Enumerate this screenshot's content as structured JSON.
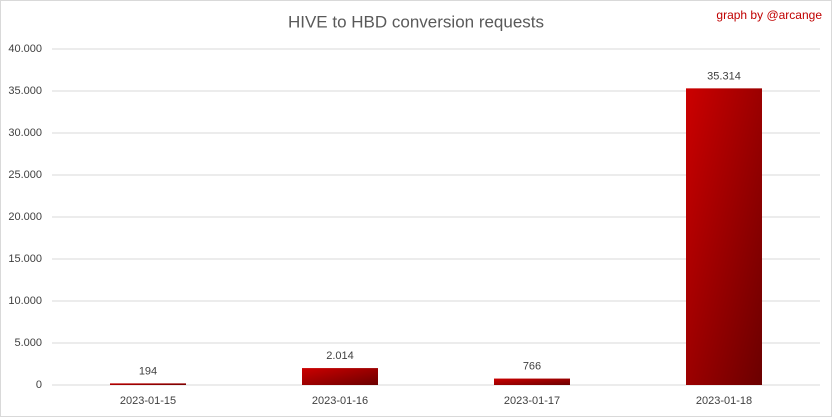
{
  "chart_data": {
    "type": "bar",
    "title": "HIVE to HBD conversion requests",
    "annotation": "graph by @arcange",
    "categories": [
      "2023-01-15",
      "2023-01-16",
      "2023-01-17",
      "2023-01-18"
    ],
    "values": [
      194,
      2014,
      766,
      35314
    ],
    "value_labels": [
      "194",
      "2.014",
      "766",
      "35.314"
    ],
    "color": "#cc0000",
    "ylim": [
      0,
      40000
    ],
    "yticks": [
      0,
      {
        "value": 5000,
        "label": "5.000"
      },
      {
        "value": 10000,
        "label": "10.000"
      },
      {
        "value": 15000,
        "label": "15.000"
      },
      {
        "value": 20000,
        "label": "20.000"
      },
      {
        "value": 25000,
        "label": "25.000"
      },
      {
        "value": 30000,
        "label": "30.000"
      },
      {
        "value": 35000,
        "label": "35.000"
      },
      {
        "value": 40000,
        "label": "40.000"
      }
    ],
    "grid": true
  }
}
